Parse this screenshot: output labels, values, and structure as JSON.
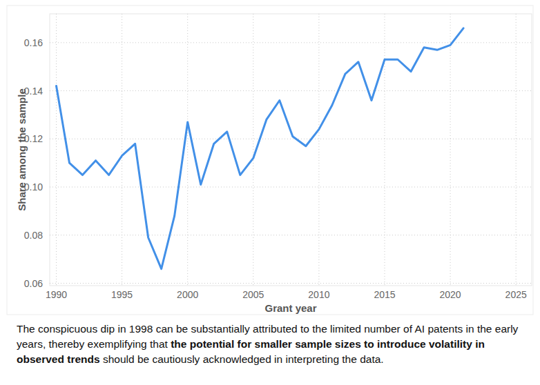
{
  "chart_data": {
    "type": "line",
    "x_label": "Grant year",
    "y_label": "Share among the sample",
    "x": [
      1990,
      1991,
      1992,
      1993,
      1994,
      1995,
      1996,
      1997,
      1998,
      1999,
      2000,
      2001,
      2002,
      2003,
      2004,
      2005,
      2006,
      2007,
      2008,
      2009,
      2010,
      2011,
      2012,
      2013,
      2014,
      2015,
      2016,
      2017,
      2018,
      2019,
      2020,
      2021
    ],
    "values": [
      0.142,
      0.11,
      0.105,
      0.111,
      0.105,
      0.113,
      0.118,
      0.079,
      0.066,
      0.088,
      0.127,
      0.101,
      0.118,
      0.123,
      0.105,
      0.112,
      0.128,
      0.136,
      0.121,
      0.117,
      0.124,
      0.134,
      0.147,
      0.152,
      0.136,
      0.153,
      0.153,
      0.148,
      0.158,
      0.157,
      0.159,
      0.166
    ],
    "color": "#4290e8",
    "xlim": [
      1989.5,
      2026.2
    ],
    "xticks": [
      1990,
      1995,
      2000,
      2005,
      2010,
      2015,
      2020,
      2025
    ],
    "ylim": [
      0.059,
      0.172
    ],
    "yticks": [
      0.06,
      0.08,
      {
        "value": 0.1,
        "label": "0.10"
      },
      0.12,
      0.14,
      0.16
    ],
    "grid": true,
    "caption": [
      "The conspicuous dip in 1998 can be substantially attributed to the limited number of AI patents in the early years, thereby exemplifying that ",
      "the potential for smaller sample sizes to introduce volatility in observed trends",
      " should be cautiously acknowledged in interpreting the data."
    ]
  }
}
